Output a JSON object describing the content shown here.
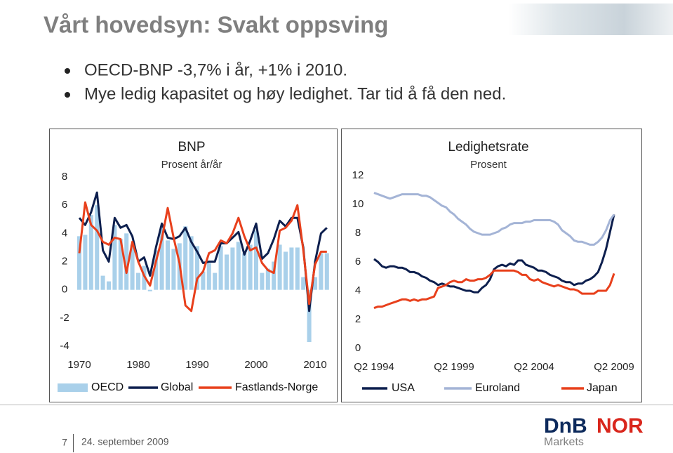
{
  "title": "Vårt hovedsyn: Svakt oppsving",
  "bullets": [
    "OECD-BNP -3,7% i år, +1% i 2010.",
    "Mye ledig kapasitet og høy ledighet. Tar tid å få den ned."
  ],
  "chart_data": [
    {
      "type": "combo",
      "title": "BNP",
      "subtitle": "Prosent år/år",
      "x": [
        1970,
        1971,
        1972,
        1973,
        1974,
        1975,
        1976,
        1977,
        1978,
        1979,
        1980,
        1981,
        1982,
        1983,
        1984,
        1985,
        1986,
        1987,
        1988,
        1989,
        1990,
        1991,
        1992,
        1993,
        1994,
        1995,
        1996,
        1997,
        1998,
        1999,
        2000,
        2001,
        2002,
        2003,
        2004,
        2005,
        2006,
        2007,
        2008,
        2009,
        2010,
        2011,
        2012
      ],
      "xlim": [
        1969.5,
        2012.5
      ],
      "xticks": [
        1970,
        1980,
        1990,
        2000,
        2010
      ],
      "ylim": [
        -4,
        8
      ],
      "yticks": [
        -4,
        -2,
        0,
        2,
        4,
        6,
        8
      ],
      "series": [
        {
          "name": "OECD",
          "type": "bar",
          "color": "#a9d0ea",
          "values": [
            3.8,
            3.9,
            5.3,
            6.0,
            1.0,
            0.6,
            4.6,
            3.6,
            4.0,
            3.2,
            1.2,
            1.7,
            -0.1,
            2.8,
            4.5,
            3.5,
            2.9,
            3.3,
            4.5,
            3.8,
            3.1,
            1.3,
            1.9,
            1.2,
            3.1,
            2.5,
            3.0,
            3.4,
            2.6,
            3.2,
            4.2,
            1.2,
            1.5,
            2.0,
            3.2,
            2.7,
            3.0,
            3.0,
            0.9,
            -3.7,
            0.9,
            2.6,
            2.6
          ]
        },
        {
          "name": "Global",
          "type": "line",
          "color": "#0d1f4e",
          "values": [
            5.1,
            4.6,
            5.5,
            6.9,
            2.8,
            2.0,
            5.1,
            4.4,
            4.6,
            3.8,
            2.0,
            2.3,
            1.0,
            3.0,
            4.7,
            3.7,
            3.6,
            3.8,
            4.4,
            3.4,
            2.7,
            1.9,
            2.0,
            2.0,
            3.3,
            3.3,
            3.7,
            4.1,
            2.5,
            3.5,
            4.7,
            2.2,
            2.6,
            3.6,
            4.9,
            4.5,
            5.1,
            5.1,
            3.0,
            -1.5,
            2.0,
            4.0,
            4.4
          ]
        },
        {
          "name": "Fastlands-Norge",
          "type": "line",
          "color": "#e8401c",
          "values": [
            2.6,
            6.2,
            4.6,
            4.2,
            3.4,
            3.2,
            3.7,
            3.6,
            1.2,
            3.4,
            2.0,
            1.0,
            0.3,
            2.0,
            3.6,
            5.8,
            3.7,
            1.9,
            -1.1,
            -1.5,
            0.8,
            1.3,
            2.6,
            2.8,
            3.5,
            3.3,
            4.0,
            5.1,
            3.8,
            2.8,
            3.0,
            1.9,
            1.4,
            1.2,
            4.2,
            4.4,
            4.9,
            6.0,
            2.8,
            -1.0,
            1.8,
            2.7,
            2.7
          ]
        }
      ]
    },
    {
      "type": "line",
      "title": "Ledighetsrate",
      "subtitle": "Prosent",
      "categories": [
        "Q2 1994",
        null,
        null,
        null,
        null,
        null,
        null,
        null,
        null,
        null,
        null,
        null,
        null,
        null,
        null,
        null,
        null,
        null,
        null,
        null,
        "Q2 1999",
        null,
        null,
        null,
        null,
        null,
        null,
        null,
        null,
        null,
        null,
        null,
        null,
        null,
        null,
        null,
        null,
        null,
        null,
        null,
        "Q2 2004",
        null,
        null,
        null,
        null,
        null,
        null,
        null,
        null,
        null,
        null,
        null,
        null,
        null,
        null,
        null,
        null,
        null,
        null,
        null,
        "Q2 2009"
      ],
      "ylim": [
        0,
        12
      ],
      "yticks": [
        0,
        2,
        4,
        6,
        8,
        10,
        12
      ],
      "series": [
        {
          "name": "USA",
          "color": "#0d1f4e",
          "values": [
            6.2,
            6.0,
            5.7,
            5.6,
            5.7,
            5.7,
            5.6,
            5.6,
            5.5,
            5.3,
            5.3,
            5.2,
            5.0,
            4.9,
            4.7,
            4.6,
            4.4,
            4.5,
            4.4,
            4.3,
            4.3,
            4.2,
            4.1,
            4.0,
            4.0,
            3.9,
            3.9,
            4.2,
            4.4,
            4.8,
            5.5,
            5.7,
            5.8,
            5.7,
            5.9,
            5.8,
            6.1,
            6.1,
            5.8,
            5.7,
            5.6,
            5.4,
            5.4,
            5.3,
            5.1,
            5.0,
            4.9,
            4.7,
            4.6,
            4.6,
            4.4,
            4.5,
            4.5,
            4.7,
            4.8,
            5.0,
            5.3,
            6.0,
            6.9,
            8.1,
            9.3
          ]
        },
        {
          "name": "Euroland",
          "color": "#a4b4d6",
          "values": [
            10.8,
            10.7,
            10.6,
            10.5,
            10.4,
            10.5,
            10.6,
            10.7,
            10.7,
            10.7,
            10.7,
            10.7,
            10.6,
            10.6,
            10.5,
            10.3,
            10.1,
            9.9,
            9.8,
            9.5,
            9.3,
            9.0,
            8.8,
            8.6,
            8.3,
            8.1,
            8.0,
            7.9,
            7.9,
            7.9,
            8.0,
            8.1,
            8.3,
            8.4,
            8.6,
            8.7,
            8.7,
            8.7,
            8.8,
            8.8,
            8.9,
            8.9,
            8.9,
            8.9,
            8.9,
            8.8,
            8.6,
            8.2,
            8.0,
            7.8,
            7.5,
            7.4,
            7.4,
            7.3,
            7.2,
            7.2,
            7.4,
            7.7,
            8.2,
            8.9,
            9.3
          ]
        },
        {
          "name": "Japan",
          "color": "#e8401c",
          "values": [
            2.8,
            2.9,
            2.9,
            3.0,
            3.1,
            3.2,
            3.3,
            3.4,
            3.4,
            3.3,
            3.4,
            3.3,
            3.4,
            3.4,
            3.5,
            3.6,
            4.2,
            4.3,
            4.4,
            4.6,
            4.7,
            4.6,
            4.6,
            4.8,
            4.7,
            4.7,
            4.8,
            4.8,
            4.9,
            5.1,
            5.4,
            5.4,
            5.4,
            5.4,
            5.4,
            5.4,
            5.3,
            5.1,
            5.1,
            4.8,
            4.7,
            4.8,
            4.6,
            4.5,
            4.4,
            4.3,
            4.4,
            4.3,
            4.2,
            4.1,
            4.1,
            4.0,
            3.8,
            3.8,
            3.8,
            3.8,
            4.0,
            4.0,
            4.0,
            4.4,
            5.2
          ]
        }
      ]
    }
  ],
  "footer": {
    "page": "7",
    "date": "24. september 2009"
  },
  "logo": {
    "left": "DnB",
    "right": "NOR",
    "sub": "Markets"
  }
}
